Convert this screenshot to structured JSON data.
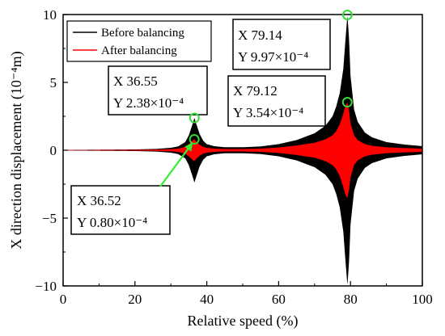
{
  "chart_data": {
    "type": "line",
    "xlabel": "Relative speed (%)",
    "ylabel": "X direction displacement (10⁻⁴m)",
    "xlim": [
      0,
      100
    ],
    "ylim": [
      -10,
      10
    ],
    "xticks": [
      "0",
      "20",
      "40",
      "60",
      "80",
      "100"
    ],
    "yticks": [
      "10",
      "5",
      "0",
      "−5",
      "−10"
    ],
    "grid": false,
    "legend_position": "top-left",
    "series": [
      {
        "name": "Before balancing",
        "color": "#000000",
        "envelope_x": [
          0,
          10,
          20,
          26,
          30,
          32,
          34,
          35,
          36,
          36.55,
          37,
          38,
          39,
          40,
          42,
          45,
          50,
          55,
          60,
          65,
          70,
          73,
          75,
          76,
          77,
          78,
          78.5,
          79.14,
          79.6,
          80,
          81,
          82,
          84,
          86,
          90,
          95,
          100
        ],
        "envelope_amp": [
          0.02,
          0.04,
          0.06,
          0.1,
          0.18,
          0.28,
          0.6,
          1.1,
          1.9,
          2.38,
          2.0,
          1.2,
          0.7,
          0.45,
          0.3,
          0.22,
          0.22,
          0.28,
          0.45,
          0.75,
          1.25,
          1.8,
          2.5,
          3.2,
          4.2,
          6.0,
          7.8,
          9.97,
          8.2,
          5.5,
          3.0,
          2.1,
          1.3,
          0.95,
          0.6,
          0.42,
          0.3
        ]
      },
      {
        "name": "After balancing",
        "color": "#ff0000",
        "envelope_x": [
          0,
          10,
          20,
          26,
          30,
          32,
          34,
          35,
          36,
          36.52,
          37,
          38,
          39,
          40,
          42,
          45,
          50,
          55,
          60,
          65,
          70,
          73,
          75,
          76,
          77,
          78,
          78.5,
          79.12,
          79.6,
          80,
          81,
          82,
          84,
          86,
          90,
          95,
          100
        ],
        "envelope_amp": [
          0.01,
          0.02,
          0.03,
          0.05,
          0.08,
          0.12,
          0.25,
          0.45,
          0.7,
          0.8,
          0.65,
          0.4,
          0.25,
          0.18,
          0.12,
          0.09,
          0.09,
          0.12,
          0.2,
          0.35,
          0.55,
          0.8,
          1.1,
          1.4,
          1.9,
          2.7,
          3.2,
          3.54,
          2.9,
          2.0,
          1.1,
          0.75,
          0.45,
          0.33,
          0.22,
          0.16,
          0.12
        ]
      }
    ],
    "annotations": [
      {
        "x": 36.55,
        "y": 2.38,
        "x_label": "X 36.55",
        "y_label": "Y 2.38×10⁻⁴",
        "box_anchor": "above-right"
      },
      {
        "x": 36.52,
        "y": 0.8,
        "x_label": "X 36.52",
        "y_label": "Y 0.80×10⁻⁴",
        "box_anchor": "below-left"
      },
      {
        "x": 79.14,
        "y": 9.97,
        "x_label": "X 79.14",
        "y_label": "Y 9.97×10⁻⁴",
        "box_anchor": "left"
      },
      {
        "x": 79.12,
        "y": 3.54,
        "x_label": "X 79.12",
        "y_label": "Y 3.54×10⁻⁴",
        "box_anchor": "left"
      }
    ],
    "marker_color": "#33dd33",
    "arrow_color": "#33ee33"
  }
}
